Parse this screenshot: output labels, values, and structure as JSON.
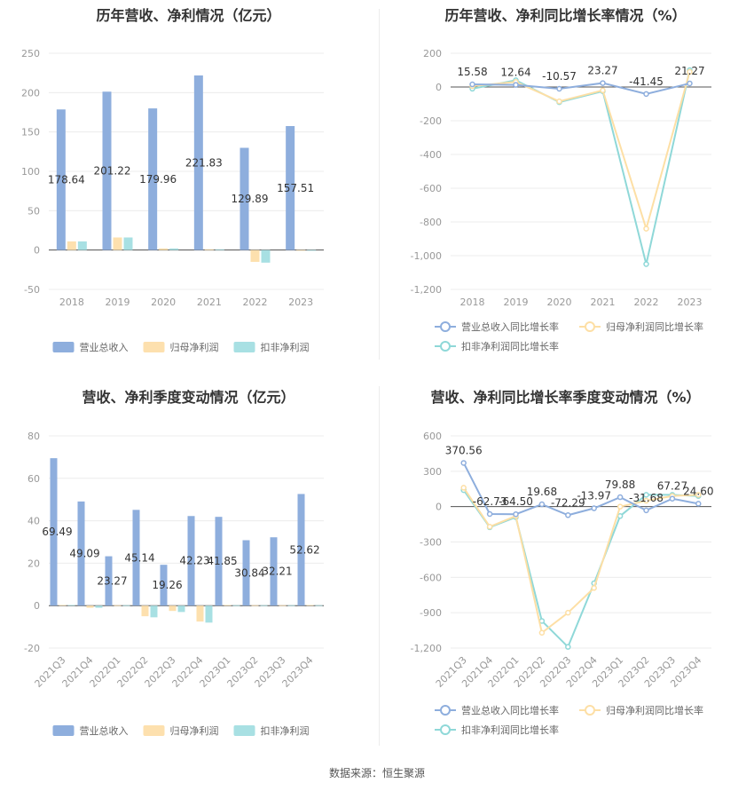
{
  "source_text": "数据来源：恒生聚源",
  "colors": {
    "revenue": "#8eaedd",
    "net_profit": "#fde0ae",
    "deducted_profit": "#a8e0e3",
    "revenue_line": "#8eaedd",
    "net_line": "#fddfa5",
    "deducted_line": "#8fd8d8",
    "axis_text": "#999999",
    "grid": "#ececec"
  },
  "chart_data": [
    {
      "id": "annual_amounts",
      "type": "bar",
      "title": "历年营收、净利情况（亿元）",
      "categories": [
        "2018",
        "2019",
        "2020",
        "2021",
        "2022",
        "2023"
      ],
      "series": [
        {
          "name": "营业总收入",
          "values": [
            178.64,
            201.22,
            179.96,
            221.83,
            129.89,
            157.51
          ],
          "labels": [
            "178.64",
            "201.22",
            "179.96",
            "221.83",
            "129.89",
            "157.51"
          ]
        },
        {
          "name": "归母净利润",
          "values": [
            11,
            16,
            2,
            1,
            -15,
            0
          ]
        },
        {
          "name": "扣非净利润",
          "values": [
            11,
            16,
            2,
            1,
            -16,
            0
          ]
        }
      ],
      "ylim": [
        -50,
        250
      ],
      "yticks": [
        -50,
        0,
        50,
        100,
        150,
        200,
        250
      ],
      "ytick_labels": [
        "-50",
        "0",
        "50",
        "100",
        "150",
        "200",
        "250"
      ],
      "grid": true,
      "legend_position": "bottom"
    },
    {
      "id": "annual_growth",
      "type": "line",
      "title": "历年营收、净利同比增长率情况（%）",
      "categories": [
        "2018",
        "2019",
        "2020",
        "2021",
        "2022",
        "2023"
      ],
      "series": [
        {
          "name": "营业总收入同比增长率",
          "values": [
            15.58,
            12.64,
            -10.57,
            23.27,
            -41.45,
            21.27
          ],
          "labels": [
            "15.58",
            "12.64",
            "-10.57",
            "23.27",
            "-41.45",
            "21.27"
          ]
        },
        {
          "name": "归母净利润同比增长率",
          "values": [
            5,
            30,
            -85,
            -20,
            -840,
            90
          ]
        },
        {
          "name": "扣非净利润同比增长率",
          "values": [
            -10,
            40,
            -90,
            -25,
            -1050,
            100
          ]
        }
      ],
      "ylim": [
        -1200,
        200
      ],
      "yticks": [
        -1200,
        -1000,
        -800,
        -600,
        -400,
        -200,
        0,
        200
      ],
      "ytick_labels": [
        "-1,200",
        "-1,000",
        "-800",
        "-600",
        "-400",
        "-200",
        "0",
        "200"
      ],
      "grid": true,
      "legend_position": "bottom"
    },
    {
      "id": "quarterly_amounts",
      "type": "bar",
      "title": "营收、净利季度变动情况（亿元）",
      "categories": [
        "2021Q3",
        "2021Q4",
        "2022Q1",
        "2022Q2",
        "2022Q3",
        "2022Q4",
        "2023Q1",
        "2023Q2",
        "2023Q3",
        "2023Q4"
      ],
      "series": [
        {
          "name": "营业总收入",
          "values": [
            69.49,
            49.09,
            23.27,
            45.14,
            19.26,
            42.23,
            41.85,
            30.84,
            32.21,
            52.62
          ],
          "labels": [
            "69.49",
            "49.09",
            "23.27",
            "45.14",
            "19.26",
            "42.23",
            "41.85",
            "30.84",
            "32.21",
            "52.62"
          ]
        },
        {
          "name": "归母净利润",
          "values": [
            0.3,
            -1,
            0.2,
            -5,
            -2.5,
            -7.5,
            0.3,
            0.2,
            0.2,
            0.3
          ]
        },
        {
          "name": "扣非净利润",
          "values": [
            0.3,
            -1,
            0.2,
            -5.5,
            -3,
            -8,
            0.2,
            0.2,
            0.2,
            0.2
          ]
        }
      ],
      "ylim": [
        -20,
        80
      ],
      "yticks": [
        -20,
        0,
        20,
        40,
        60,
        80
      ],
      "ytick_labels": [
        "-20",
        "0",
        "20",
        "40",
        "60",
        "80"
      ],
      "grid": true,
      "legend_position": "bottom"
    },
    {
      "id": "quarterly_growth",
      "type": "line",
      "title": "营收、净利同比增长率季度变动情况（%）",
      "categories": [
        "2021Q3",
        "2021Q4",
        "2022Q1",
        "2022Q2",
        "2022Q3",
        "2022Q4",
        "2023Q1",
        "2023Q2",
        "2023Q3",
        "2023Q4"
      ],
      "series": [
        {
          "name": "营业总收入同比增长率",
          "values": [
            370.56,
            -62.73,
            -64.5,
            19.68,
            -72.29,
            -13.97,
            79.88,
            -31.68,
            67.27,
            24.6
          ],
          "labels": [
            "370.56",
            "-62.73",
            "-64.50",
            "19.68",
            "-72.29",
            "-13.97",
            "79.88",
            "-31.68",
            "67.27",
            "24.60"
          ]
        },
        {
          "name": "归母净利润同比增长率",
          "values": [
            160,
            -170,
            -80,
            -1070,
            -900,
            -690,
            0,
            50,
            90,
            100
          ]
        },
        {
          "name": "扣非净利润同比增长率",
          "values": [
            140,
            -175,
            -90,
            -970,
            -1190,
            -650,
            -80,
            100,
            100,
            90
          ]
        }
      ],
      "ylim": [
        -1200,
        600
      ],
      "yticks": [
        -1200,
        -900,
        -600,
        -300,
        0,
        300,
        600
      ],
      "ytick_labels": [
        "-1,200",
        "-900",
        "-600",
        "-300",
        "0",
        "300",
        "600"
      ],
      "grid": true,
      "legend_position": "bottom"
    }
  ]
}
